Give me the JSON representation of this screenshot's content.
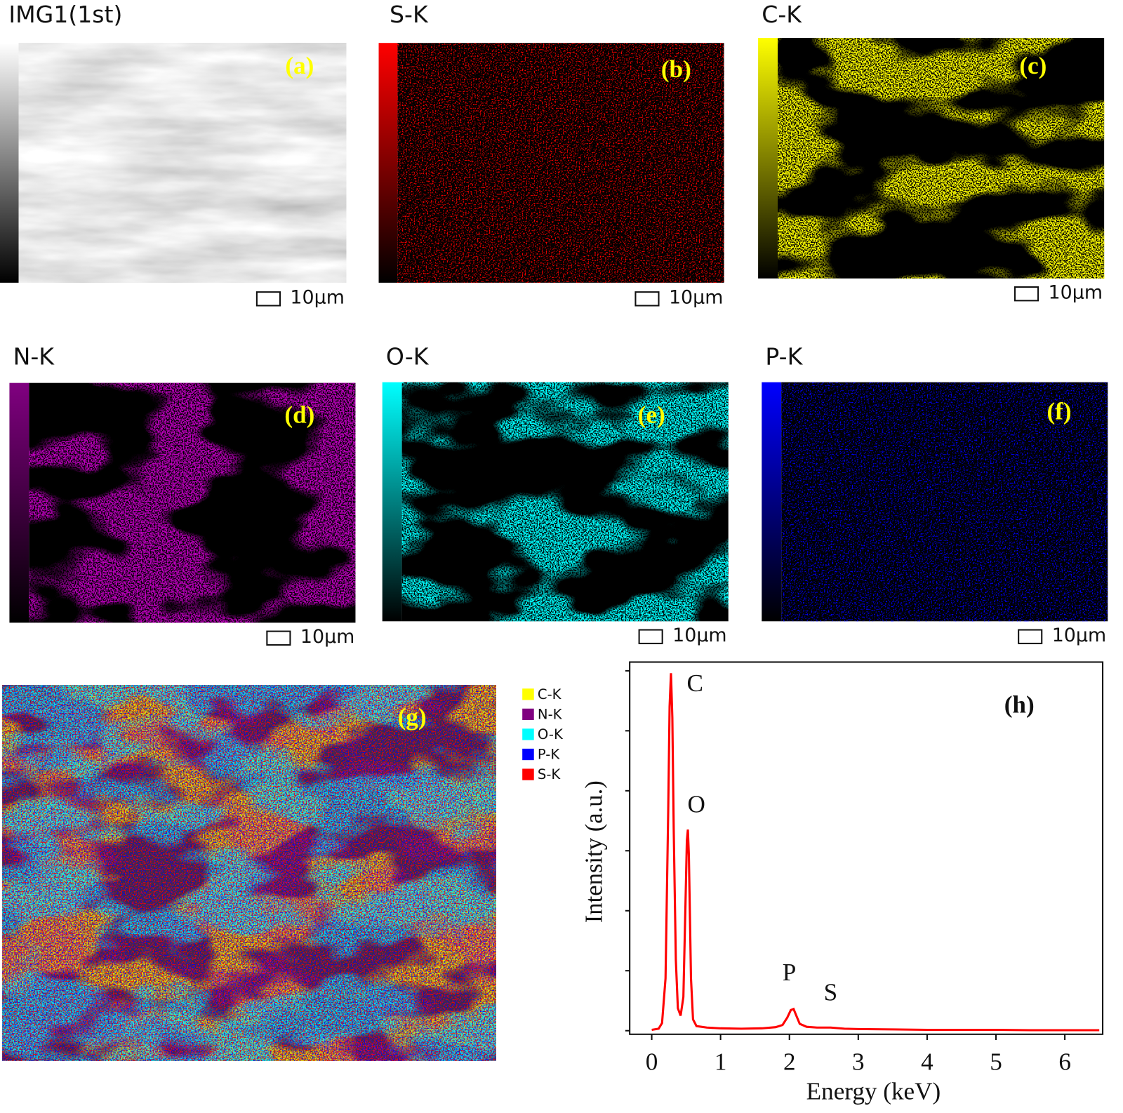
{
  "panels": [
    {
      "title": "IMG1(1st)",
      "label": "(a)",
      "scale_bar": "10µm",
      "color": "#ffffff"
    },
    {
      "title": "S-K",
      "label": "(b)",
      "scale_bar": "10µm",
      "color": "#ff0000"
    },
    {
      "title": "C-K",
      "label": "(c)",
      "scale_bar": "10µm",
      "color": "#ffff00"
    },
    {
      "title": "N-K",
      "label": "(d)",
      "scale_bar": "10µm",
      "color": "#800080"
    },
    {
      "title": "O-K",
      "label": "(e)",
      "scale_bar": "10µm",
      "color": "#00ffff"
    },
    {
      "title": "P-K",
      "label": "(f)",
      "scale_bar": "10µm",
      "color": "#0000ff"
    }
  ],
  "overlay": {
    "label": "(g)",
    "legend": [
      {
        "name": "C-K",
        "color": "#ffff00"
      },
      {
        "name": "N-K",
        "color": "#800080"
      },
      {
        "name": "O-K",
        "color": "#00ffff"
      },
      {
        "name": "P-K",
        "color": "#0000ff"
      },
      {
        "name": "S-K",
        "color": "#ff0000"
      }
    ]
  },
  "chart_data": {
    "type": "line",
    "label": "(h)",
    "x_label": "Energy (keV)",
    "y_label": "Intensity (a.u.)",
    "peak_labels": [
      "C",
      "O",
      "P",
      "S"
    ],
    "x": [
      0,
      0.1,
      0.15,
      0.2,
      0.24,
      0.26,
      0.28,
      0.3,
      0.32,
      0.35,
      0.38,
      0.42,
      0.46,
      0.49,
      0.51,
      0.525,
      0.54,
      0.57,
      0.6,
      0.65,
      0.8,
      1.0,
      1.3,
      1.6,
      1.8,
      1.9,
      1.97,
      2.02,
      2.06,
      2.1,
      2.15,
      2.25,
      2.4,
      2.6,
      2.8,
      3.0,
      3.5,
      4.0,
      4.5,
      5.0,
      5.5,
      6.0,
      6.5
    ],
    "values": [
      1.2,
      1.5,
      3,
      15,
      60,
      88,
      97,
      85,
      55,
      20,
      7,
      5,
      10,
      35,
      52,
      55,
      48,
      15,
      4,
      2.2,
      1.8,
      1.6,
      1.5,
      1.6,
      1.9,
      2.5,
      4.5,
      6.5,
      6.8,
      5,
      2.8,
      2,
      1.8,
      1.8,
      1.5,
      1.4,
      1.3,
      1.2,
      1.2,
      1.2,
      1.1,
      1.1,
      1.1
    ],
    "color": "#ff0000",
    "xlim": [
      -0.32,
      6.55
    ],
    "ylim": [
      0,
      100
    ],
    "xticks": [
      0,
      1,
      2,
      3,
      4,
      5,
      6
    ]
  }
}
